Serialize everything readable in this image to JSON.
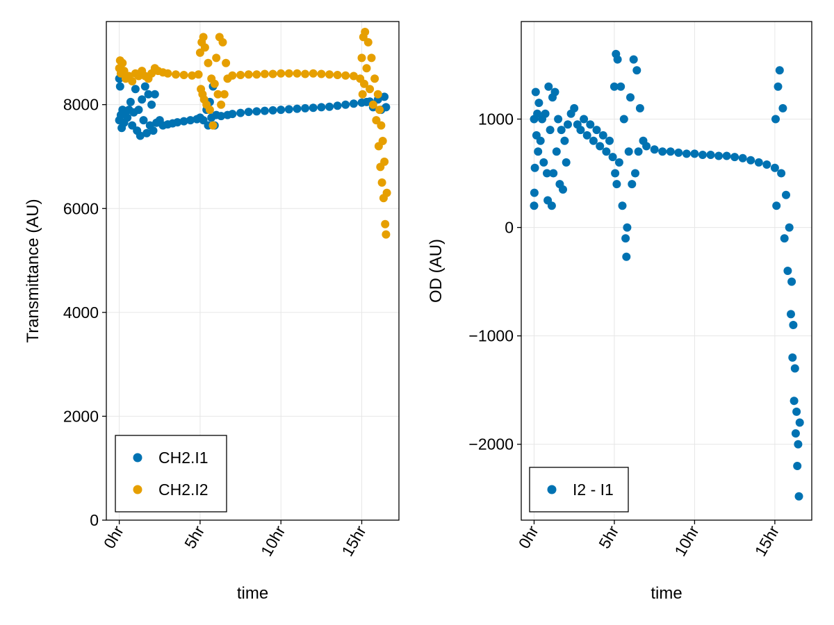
{
  "colors": {
    "ch2_i1": "#0072B2",
    "ch2_i2": "#E69F00",
    "grid": "#e6e6e6",
    "frame": "#000000"
  },
  "chart_data": [
    {
      "type": "scatter",
      "xlabel": "time",
      "ylabel": "Transmittance (AU)",
      "xlim": [
        -0.8,
        17.3
      ],
      "ylim": [
        0,
        9600
      ],
      "xticks": [
        {
          "v": 0,
          "label": "0hr"
        },
        {
          "v": 5,
          "label": "5hr"
        },
        {
          "v": 10,
          "label": "10hr"
        },
        {
          "v": 15,
          "label": "15hr"
        }
      ],
      "yticks": [
        {
          "v": 0,
          "label": "0"
        },
        {
          "v": 2000,
          "label": "2000"
        },
        {
          "v": 4000,
          "label": "4000"
        },
        {
          "v": 6000,
          "label": "6000"
        },
        {
          "v": 8000,
          "label": "8000"
        }
      ],
      "grid": true,
      "legend_position": "bottom-left",
      "series": [
        {
          "name": "CH2.I1",
          "color": "#0072B2",
          "points": [
            [
              0.0,
              7700
            ],
            [
              0.0,
              8500
            ],
            [
              0.05,
              8350
            ],
            [
              0.1,
              7800
            ],
            [
              0.15,
              7550
            ],
            [
              0.2,
              7900
            ],
            [
              0.3,
              7650
            ],
            [
              0.4,
              7850
            ],
            [
              0.5,
              7750
            ],
            [
              0.6,
              7900
            ],
            [
              0.7,
              8050
            ],
            [
              0.8,
              7600
            ],
            [
              0.9,
              7850
            ],
            [
              1.0,
              8300
            ],
            [
              1.1,
              7500
            ],
            [
              1.2,
              7900
            ],
            [
              1.3,
              7400
            ],
            [
              1.4,
              8100
            ],
            [
              1.5,
              7700
            ],
            [
              1.6,
              8350
            ],
            [
              1.7,
              7450
            ],
            [
              1.8,
              8200
            ],
            [
              1.9,
              7600
            ],
            [
              2.0,
              8000
            ],
            [
              2.1,
              7500
            ],
            [
              2.2,
              8200
            ],
            [
              2.3,
              7650
            ],
            [
              2.5,
              7700
            ],
            [
              2.7,
              7600
            ],
            [
              3.0,
              7620
            ],
            [
              3.3,
              7640
            ],
            [
              3.6,
              7660
            ],
            [
              4.0,
              7680
            ],
            [
              4.4,
              7700
            ],
            [
              4.8,
              7720
            ],
            [
              5.0,
              7750
            ],
            [
              5.2,
              7700
            ],
            [
              5.4,
              7900
            ],
            [
              5.5,
              7600
            ],
            [
              5.6,
              8050
            ],
            [
              5.7,
              7750
            ],
            [
              5.8,
              8350
            ],
            [
              5.9,
              7600
            ],
            [
              6.0,
              7800
            ],
            [
              6.3,
              7780
            ],
            [
              6.7,
              7800
            ],
            [
              7.0,
              7820
            ],
            [
              7.5,
              7840
            ],
            [
              8.0,
              7860
            ],
            [
              8.5,
              7870
            ],
            [
              9.0,
              7880
            ],
            [
              9.5,
              7890
            ],
            [
              10.0,
              7900
            ],
            [
              10.5,
              7910
            ],
            [
              11.0,
              7920
            ],
            [
              11.5,
              7930
            ],
            [
              12.0,
              7940
            ],
            [
              12.5,
              7950
            ],
            [
              13.0,
              7960
            ],
            [
              13.5,
              7980
            ],
            [
              14.0,
              8000
            ],
            [
              14.5,
              8020
            ],
            [
              15.0,
              8040
            ],
            [
              15.3,
              8050
            ],
            [
              15.5,
              8060
            ],
            [
              15.7,
              7950
            ],
            [
              16.0,
              8100
            ],
            [
              16.2,
              7900
            ],
            [
              16.4,
              8150
            ],
            [
              16.5,
              7950
            ]
          ]
        },
        {
          "name": "CH2.I2",
          "color": "#E69F00",
          "points": [
            [
              0.0,
              8700
            ],
            [
              0.05,
              8850
            ],
            [
              0.1,
              8600
            ],
            [
              0.2,
              8800
            ],
            [
              0.3,
              8650
            ],
            [
              0.4,
              8500
            ],
            [
              0.6,
              8550
            ],
            [
              0.8,
              8450
            ],
            [
              1.0,
              8600
            ],
            [
              1.2,
              8550
            ],
            [
              1.4,
              8650
            ],
            [
              1.6,
              8550
            ],
            [
              1.8,
              8500
            ],
            [
              2.0,
              8600
            ],
            [
              2.2,
              8700
            ],
            [
              2.4,
              8650
            ],
            [
              2.7,
              8620
            ],
            [
              3.0,
              8600
            ],
            [
              3.5,
              8580
            ],
            [
              4.0,
              8570
            ],
            [
              4.5,
              8560
            ],
            [
              4.9,
              8580
            ],
            [
              5.0,
              9000
            ],
            [
              5.05,
              8300
            ],
            [
              5.1,
              9200
            ],
            [
              5.15,
              8200
            ],
            [
              5.2,
              9300
            ],
            [
              5.25,
              8100
            ],
            [
              5.3,
              9100
            ],
            [
              5.4,
              8000
            ],
            [
              5.5,
              8800
            ],
            [
              5.6,
              7900
            ],
            [
              5.7,
              8500
            ],
            [
              5.8,
              7600
            ],
            [
              5.9,
              8400
            ],
            [
              6.0,
              8900
            ],
            [
              6.1,
              8200
            ],
            [
              6.2,
              9300
            ],
            [
              6.3,
              8000
            ],
            [
              6.4,
              9200
            ],
            [
              6.5,
              8200
            ],
            [
              6.6,
              8800
            ],
            [
              6.7,
              8500
            ],
            [
              7.0,
              8560
            ],
            [
              7.5,
              8570
            ],
            [
              8.0,
              8580
            ],
            [
              8.5,
              8580
            ],
            [
              9.0,
              8590
            ],
            [
              9.5,
              8590
            ],
            [
              10.0,
              8600
            ],
            [
              10.5,
              8600
            ],
            [
              11.0,
              8600
            ],
            [
              11.5,
              8590
            ],
            [
              12.0,
              8600
            ],
            [
              12.5,
              8590
            ],
            [
              13.0,
              8580
            ],
            [
              13.5,
              8570
            ],
            [
              14.0,
              8560
            ],
            [
              14.5,
              8550
            ],
            [
              14.9,
              8500
            ],
            [
              15.0,
              8900
            ],
            [
              15.05,
              8200
            ],
            [
              15.1,
              9300
            ],
            [
              15.15,
              8400
            ],
            [
              15.2,
              9400
            ],
            [
              15.3,
              8700
            ],
            [
              15.4,
              9200
            ],
            [
              15.5,
              8300
            ],
            [
              15.6,
              8900
            ],
            [
              15.7,
              8000
            ],
            [
              15.8,
              8500
            ],
            [
              15.9,
              7700
            ],
            [
              16.0,
              8200
            ],
            [
              16.05,
              7200
            ],
            [
              16.1,
              7900
            ],
            [
              16.15,
              6800
            ],
            [
              16.2,
              7600
            ],
            [
              16.25,
              6500
            ],
            [
              16.3,
              7300
            ],
            [
              16.35,
              6200
            ],
            [
              16.4,
              6900
            ],
            [
              16.45,
              5700
            ],
            [
              16.5,
              5500
            ],
            [
              16.55,
              6300
            ]
          ]
        }
      ]
    },
    {
      "type": "scatter",
      "xlabel": "time",
      "ylabel": "OD (AU)",
      "xlim": [
        -0.8,
        17.3
      ],
      "ylim": [
        -2700,
        1900
      ],
      "xticks": [
        {
          "v": 0,
          "label": "0hr"
        },
        {
          "v": 5,
          "label": "5hr"
        },
        {
          "v": 10,
          "label": "10hr"
        },
        {
          "v": 15,
          "label": "15hr"
        }
      ],
      "yticks": [
        {
          "v": -2000,
          "label": "−2000"
        },
        {
          "v": -1000,
          "label": "−1000"
        },
        {
          "v": 0,
          "label": "0"
        },
        {
          "v": 1000,
          "label": "1000"
        }
      ],
      "grid": true,
      "legend_position": "bottom-left",
      "series": [
        {
          "name": "I2 - I1",
          "color": "#0072B2",
          "points": [
            [
              0.0,
              1000
            ],
            [
              0.0,
              200
            ],
            [
              0.02,
              320
            ],
            [
              0.05,
              550
            ],
            [
              0.1,
              1250
            ],
            [
              0.15,
              850
            ],
            [
              0.2,
              1050
            ],
            [
              0.25,
              700
            ],
            [
              0.3,
              1150
            ],
            [
              0.4,
              800
            ],
            [
              0.5,
              1000
            ],
            [
              0.6,
              600
            ],
            [
              0.7,
              1050
            ],
            [
              0.8,
              500
            ],
            [
              0.85,
              250
            ],
            [
              0.9,
              1300
            ],
            [
              1.0,
              900
            ],
            [
              1.1,
              200
            ],
            [
              1.15,
              1200
            ],
            [
              1.2,
              500
            ],
            [
              1.3,
              1250
            ],
            [
              1.4,
              700
            ],
            [
              1.5,
              1000
            ],
            [
              1.6,
              400
            ],
            [
              1.7,
              900
            ],
            [
              1.8,
              350
            ],
            [
              1.9,
              800
            ],
            [
              2.0,
              600
            ],
            [
              2.1,
              950
            ],
            [
              2.3,
              1050
            ],
            [
              2.5,
              1100
            ],
            [
              2.7,
              950
            ],
            [
              2.9,
              900
            ],
            [
              3.1,
              1000
            ],
            [
              3.3,
              850
            ],
            [
              3.5,
              950
            ],
            [
              3.7,
              800
            ],
            [
              3.9,
              900
            ],
            [
              4.1,
              750
            ],
            [
              4.3,
              850
            ],
            [
              4.5,
              700
            ],
            [
              4.7,
              800
            ],
            [
              4.9,
              650
            ],
            [
              5.0,
              1300
            ],
            [
              5.05,
              500
            ],
            [
              5.1,
              1600
            ],
            [
              5.15,
              400
            ],
            [
              5.2,
              1550
            ],
            [
              5.3,
              600
            ],
            [
              5.4,
              1300
            ],
            [
              5.5,
              200
            ],
            [
              5.6,
              1000
            ],
            [
              5.7,
              -100
            ],
            [
              5.75,
              -270
            ],
            [
              5.8,
              0
            ],
            [
              5.9,
              700
            ],
            [
              6.0,
              1200
            ],
            [
              6.1,
              400
            ],
            [
              6.2,
              1550
            ],
            [
              6.3,
              500
            ],
            [
              6.4,
              1450
            ],
            [
              6.5,
              700
            ],
            [
              6.6,
              1100
            ],
            [
              6.8,
              800
            ],
            [
              7.0,
              750
            ],
            [
              7.5,
              720
            ],
            [
              8.0,
              700
            ],
            [
              8.5,
              700
            ],
            [
              9.0,
              690
            ],
            [
              9.5,
              680
            ],
            [
              10.0,
              680
            ],
            [
              10.5,
              670
            ],
            [
              11.0,
              670
            ],
            [
              11.5,
              660
            ],
            [
              12.0,
              660
            ],
            [
              12.5,
              650
            ],
            [
              13.0,
              640
            ],
            [
              13.5,
              620
            ],
            [
              14.0,
              600
            ],
            [
              14.5,
              580
            ],
            [
              15.0,
              550
            ],
            [
              15.05,
              1000
            ],
            [
              15.1,
              200
            ],
            [
              15.2,
              1300
            ],
            [
              15.3,
              1450
            ],
            [
              15.4,
              500
            ],
            [
              15.5,
              1100
            ],
            [
              15.6,
              -100
            ],
            [
              15.7,
              300
            ],
            [
              15.8,
              -400
            ],
            [
              15.9,
              0
            ],
            [
              16.0,
              -800
            ],
            [
              16.05,
              -500
            ],
            [
              16.1,
              -1200
            ],
            [
              16.15,
              -900
            ],
            [
              16.2,
              -1600
            ],
            [
              16.25,
              -1300
            ],
            [
              16.3,
              -1900
            ],
            [
              16.35,
              -1700
            ],
            [
              16.4,
              -2200
            ],
            [
              16.45,
              -2000
            ],
            [
              16.5,
              -2480
            ],
            [
              16.55,
              -1800
            ]
          ]
        }
      ]
    }
  ]
}
